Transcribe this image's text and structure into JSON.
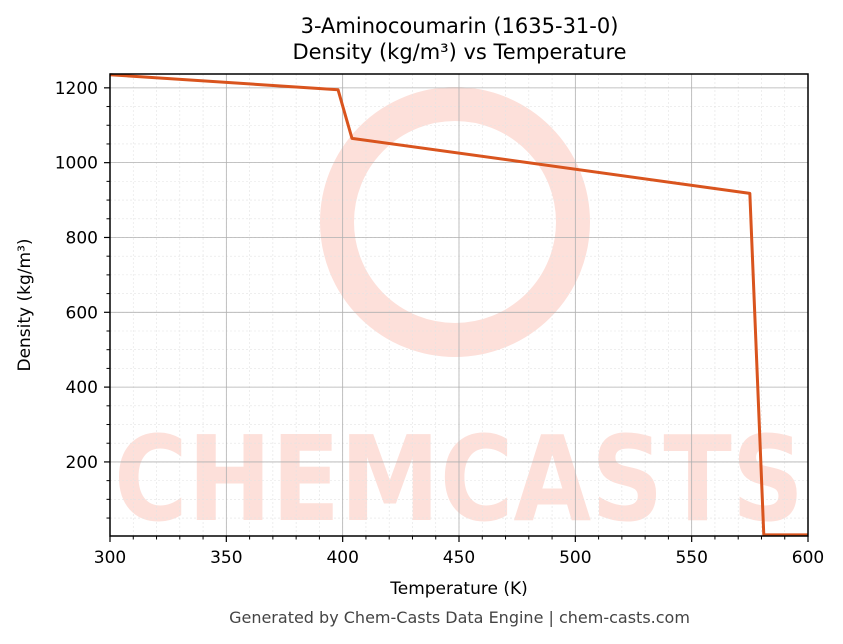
{
  "chart_data": {
    "type": "line",
    "title": "3-Aminocoumarin (1635-31-0)",
    "subtitle": "Density (kg/m³) vs Temperature",
    "xlabel": "Temperature (K)",
    "ylabel": "Density (kg/m³)",
    "xlim": [
      300,
      600
    ],
    "ylim": [
      2,
      1237
    ],
    "x_ticks": [
      300,
      350,
      400,
      450,
      500,
      550,
      600
    ],
    "y_ticks": [
      200,
      400,
      600,
      800,
      1000,
      1200
    ],
    "grid": true,
    "legend": null,
    "series": [
      {
        "name": "Density",
        "color": "#d9541e",
        "x": [
          300,
          398,
          404,
          575,
          581,
          600
        ],
        "y": [
          1235,
          1195,
          1065,
          918,
          5,
          5
        ]
      }
    ]
  },
  "watermark": {
    "text": "CHEMCASTS",
    "color": "#fde0da"
  },
  "footer": "Generated by Chem-Casts Data Engine | chem-casts.com"
}
